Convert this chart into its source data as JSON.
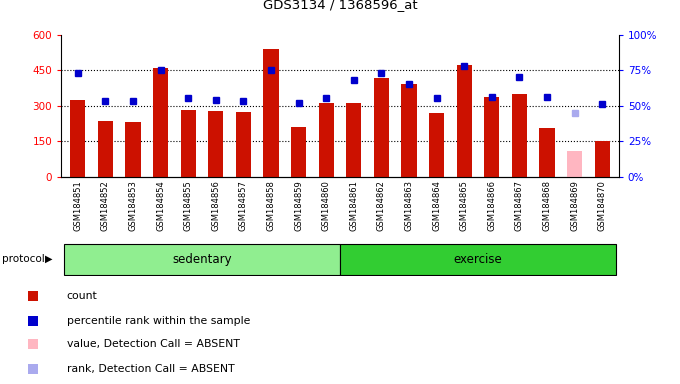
{
  "title": "GDS3134 / 1368596_at",
  "samples": [
    "GSM184851",
    "GSM184852",
    "GSM184853",
    "GSM184854",
    "GSM184855",
    "GSM184856",
    "GSM184857",
    "GSM184858",
    "GSM184859",
    "GSM184860",
    "GSM184861",
    "GSM184862",
    "GSM184863",
    "GSM184864",
    "GSM184865",
    "GSM184866",
    "GSM184867",
    "GSM184868",
    "GSM184869",
    "GSM184870"
  ],
  "bar_values": [
    325,
    235,
    232,
    460,
    280,
    278,
    272,
    540,
    210,
    310,
    310,
    415,
    390,
    268,
    472,
    335,
    350,
    207,
    110,
    150
  ],
  "bar_absent": [
    false,
    false,
    false,
    false,
    false,
    false,
    false,
    false,
    false,
    false,
    false,
    false,
    false,
    false,
    false,
    false,
    false,
    false,
    true,
    false
  ],
  "percentile_values": [
    73,
    53,
    53,
    75,
    55,
    54,
    53,
    75,
    52,
    55,
    68,
    73,
    65,
    55,
    78,
    56,
    70,
    56,
    45,
    51
  ],
  "percentile_absent": [
    false,
    false,
    false,
    false,
    false,
    false,
    false,
    false,
    false,
    false,
    false,
    false,
    false,
    false,
    false,
    false,
    false,
    false,
    true,
    false
  ],
  "groups": [
    {
      "name": "sedentary",
      "start": 0,
      "end": 9,
      "color": "#90EE90"
    },
    {
      "name": "exercise",
      "start": 10,
      "end": 19,
      "color": "#32CD32"
    }
  ],
  "ylim_left": [
    0,
    600
  ],
  "ylim_right": [
    0,
    100
  ],
  "yticks_left": [
    0,
    150,
    300,
    450,
    600
  ],
  "ytick_labels_left": [
    "0",
    "150",
    "300",
    "450",
    "600"
  ],
  "yticks_right": [
    0,
    25,
    50,
    75,
    100
  ],
  "ytick_labels_right": [
    "0%",
    "25%",
    "50%",
    "75%",
    "100%"
  ],
  "bar_color": "#CC1100",
  "bar_absent_color": "#FFB6C1",
  "dot_color": "#0000CC",
  "dot_absent_color": "#AAAAEE",
  "hline_values": [
    150,
    300,
    450
  ],
  "legend_items": [
    {
      "label": "count",
      "color": "#CC1100"
    },
    {
      "label": "percentile rank within the sample",
      "color": "#0000CC"
    },
    {
      "label": "value, Detection Call = ABSENT",
      "color": "#FFB6C1"
    },
    {
      "label": "rank, Detection Call = ABSENT",
      "color": "#AAAAEE"
    }
  ]
}
